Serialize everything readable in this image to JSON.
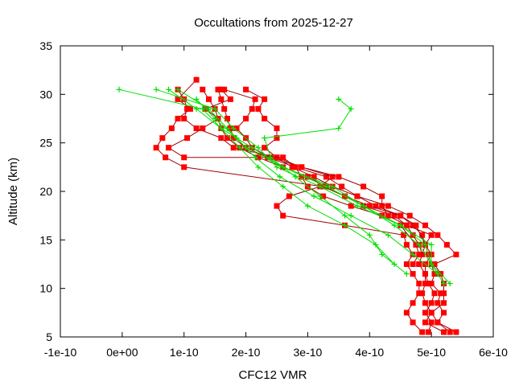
{
  "chart_data": {
    "type": "line",
    "title": "Occultations from 2025-12-27",
    "xlabel": "CFC12 VMR",
    "ylabel": "Altitude (km)",
    "xlim": [
      -1e-10,
      6e-10
    ],
    "ylim": [
      5,
      35
    ],
    "x_ticks": [
      -1e-10,
      0,
      1e-10,
      2e-10,
      3e-10,
      4e-10,
      5e-10,
      6e-10
    ],
    "x_tick_labels": [
      "-1e-10",
      "0e+00",
      "1e-10",
      "2e-10",
      "3e-10",
      "4e-10",
      "5e-10",
      "6e-10"
    ],
    "y_ticks": [
      5,
      10,
      15,
      20,
      25,
      30,
      35
    ],
    "y_tick_labels": [
      "5",
      "10",
      "15",
      "20",
      "25",
      "30",
      "35"
    ],
    "grid": false,
    "colors": {
      "red": "#ff0000",
      "red_line": "#a00000",
      "green": "#00e000",
      "axis": "#000000"
    },
    "series": [
      {
        "name": "red-profile-1",
        "color": "red",
        "marker": "square",
        "points": [
          [
            5.2e-10,
            5.5
          ],
          [
            4.9e-10,
            6.5
          ],
          [
            5e-10,
            7.5
          ],
          [
            4.9e-10,
            8.5
          ],
          [
            4.85e-10,
            9.5
          ],
          [
            4.9e-10,
            10.5
          ],
          [
            4.9e-10,
            11.5
          ],
          [
            4.8e-10,
            12.5
          ],
          [
            4.85e-10,
            13.5
          ],
          [
            4.8e-10,
            14.5
          ],
          [
            4.7e-10,
            15.5
          ],
          [
            4.6e-10,
            16.5
          ],
          [
            4.4e-10,
            17.5
          ],
          [
            3.9e-10,
            18.5
          ],
          [
            3.6e-10,
            19.5
          ],
          [
            3.3e-10,
            20.5
          ],
          [
            3e-10,
            21.5
          ],
          [
            2.6e-10,
            22.5
          ],
          [
            2.2e-10,
            23.5
          ],
          [
            1.9e-10,
            24.5
          ],
          [
            1.7e-10,
            25.5
          ],
          [
            1.6e-10,
            26.5
          ],
          [
            1.55e-10,
            27.5
          ],
          [
            1.5e-10,
            28.5
          ],
          [
            1.4e-10,
            29.5
          ],
          [
            1.3e-10,
            30.5
          ]
        ]
      },
      {
        "name": "red-profile-2",
        "color": "red",
        "marker": "square",
        "points": [
          [
            5.4e-10,
            5.5
          ],
          [
            5.1e-10,
            6.5
          ],
          [
            5.2e-10,
            7.5
          ],
          [
            5.1e-10,
            8.5
          ],
          [
            5.15e-10,
            9.5
          ],
          [
            5e-10,
            10.5
          ],
          [
            5.05e-10,
            11.5
          ],
          [
            5e-10,
            12.5
          ],
          [
            4.95e-10,
            13.5
          ],
          [
            4.9e-10,
            14.5
          ],
          [
            4.85e-10,
            15.5
          ],
          [
            4.7e-10,
            16.5
          ],
          [
            4.5e-10,
            17.5
          ],
          [
            4.1e-10,
            18.5
          ],
          [
            3.8e-10,
            19.5
          ],
          [
            3.55e-10,
            20.5
          ],
          [
            3.3e-10,
            21.5
          ],
          [
            2.8e-10,
            22.5
          ],
          [
            2.35e-10,
            23.5
          ],
          [
            2e-10,
            24.5
          ],
          [
            1.8e-10,
            25.5
          ],
          [
            1.75e-10,
            26.5
          ],
          [
            1.7e-10,
            27.5
          ],
          [
            1.65e-10,
            28.5
          ],
          [
            1.6e-10,
            29.5
          ],
          [
            1.55e-10,
            30.5
          ]
        ]
      },
      {
        "name": "red-profile-3",
        "color": "red",
        "marker": "square",
        "points": [
          [
            4.85e-10,
            5.5
          ],
          [
            4.7e-10,
            6.5
          ],
          [
            4.6e-10,
            7.5
          ],
          [
            4.7e-10,
            8.5
          ],
          [
            4.8e-10,
            9.5
          ],
          [
            4.8e-10,
            10.5
          ],
          [
            4.7e-10,
            11.5
          ],
          [
            4.6e-10,
            12.5
          ],
          [
            4.7e-10,
            13.5
          ],
          [
            4.6e-10,
            14.5
          ],
          [
            4.55e-10,
            15.5
          ],
          [
            3.6e-10,
            16.5
          ],
          [
            2.6e-10,
            17.5
          ],
          [
            2.5e-10,
            18.5
          ],
          [
            2.7e-10,
            19.5
          ],
          [
            3.2e-10,
            20.5
          ],
          [
            3.4e-10,
            21.5
          ],
          [
            2.9e-10,
            22.5
          ],
          [
            2.5e-10,
            23.5
          ],
          [
            2.3e-10,
            24.5
          ],
          [
            2.5e-10,
            25.5
          ],
          [
            2.5e-10,
            26.5
          ],
          [
            2.3e-10,
            27.5
          ],
          [
            2.2e-10,
            28.5
          ],
          [
            2.3e-10,
            29.5
          ],
          [
            2e-10,
            30.5
          ]
        ]
      },
      {
        "name": "red-profile-4",
        "color": "red",
        "marker": "square",
        "points": [
          [
            4.95e-10,
            5.5
          ],
          [
            5e-10,
            6.5
          ],
          [
            4.9e-10,
            7.5
          ],
          [
            5e-10,
            8.5
          ],
          [
            5.05e-10,
            9.5
          ],
          [
            4.95e-10,
            10.5
          ],
          [
            4.9e-10,
            11.5
          ],
          [
            4.9e-10,
            12.5
          ],
          [
            5e-10,
            13.5
          ],
          [
            4.9e-10,
            14.5
          ],
          [
            5e-10,
            15.5
          ],
          [
            4.6e-10,
            16.5
          ],
          [
            4.3e-10,
            17.5
          ],
          [
            4.2e-10,
            18.5
          ],
          [
            4.2e-10,
            19.5
          ],
          [
            3.9e-10,
            20.5
          ],
          [
            3.5e-10,
            21.5
          ],
          [
            2.9e-10,
            22.5
          ],
          [
            2.4e-10,
            23.5
          ],
          [
            2.1e-10,
            24.5
          ],
          [
            2e-10,
            25.5
          ],
          [
            1.85e-10,
            26.5
          ],
          [
            2e-10,
            27.5
          ],
          [
            2.1e-10,
            28.5
          ],
          [
            2.15e-10,
            29.5
          ],
          [
            1.65e-10,
            30.5
          ]
        ]
      },
      {
        "name": "red-profile-5",
        "color": "red",
        "marker": "square",
        "points": [
          [
            5.3e-10,
            5.5
          ],
          [
            5.1e-10,
            6.5
          ],
          [
            5e-10,
            7.5
          ],
          [
            5.2e-10,
            8.5
          ],
          [
            5.2e-10,
            9.5
          ],
          [
            5.2e-10,
            10.5
          ],
          [
            5.15e-10,
            11.5
          ],
          [
            5.05e-10,
            12.5
          ],
          [
            5.4e-10,
            13.5
          ],
          [
            5.25e-10,
            14.5
          ],
          [
            5.1e-10,
            15.5
          ],
          [
            4.9e-10,
            16.5
          ],
          [
            4.65e-10,
            17.5
          ],
          [
            4.3e-10,
            18.5
          ],
          [
            3.8e-10,
            19.5
          ],
          [
            3.4e-10,
            20.5
          ],
          [
            3.1e-10,
            21.5
          ],
          [
            2.75e-10,
            22.5
          ],
          [
            2.5e-10,
            23.5
          ],
          [
            1.8e-10,
            24.5
          ],
          [
            1.6e-10,
            25.5
          ],
          [
            1.2e-10,
            26.5
          ],
          [
            1e-10,
            27.5
          ],
          [
            1.05e-10,
            28.5
          ],
          [
            1e-10,
            29.5
          ],
          [
            9e-11,
            30.5
          ]
        ]
      },
      {
        "name": "red-profile-6",
        "color": "red",
        "marker": "square",
        "points": [
          [
            4.8e-10,
            12.5
          ],
          [
            4.9e-10,
            14.5
          ],
          [
            4.75e-10,
            16.5
          ],
          [
            4.5e-10,
            17.5
          ],
          [
            4e-10,
            18.5
          ],
          [
            3.6e-10,
            19.5
          ],
          [
            3.25e-10,
            20.5
          ],
          [
            1e-10,
            22.5
          ],
          [
            7e-11,
            23.5
          ],
          [
            5.5e-11,
            24.5
          ],
          [
            6.5e-11,
            25.5
          ],
          [
            8e-11,
            26.5
          ],
          [
            9e-11,
            27.5
          ],
          [
            1.1e-10,
            28.5
          ],
          [
            9e-11,
            29.5
          ],
          [
            1.2e-10,
            31.5
          ]
        ]
      },
      {
        "name": "red-profile-7",
        "color": "red",
        "marker": "square",
        "points": [
          [
            4.7e-10,
            12.5
          ],
          [
            4.8e-10,
            13.5
          ],
          [
            4.75e-10,
            14.5
          ],
          [
            4.5e-10,
            16.5
          ],
          [
            4.2e-10,
            17.5
          ],
          [
            3.7e-10,
            18.5
          ],
          [
            3.25e-10,
            19.5
          ],
          [
            3e-10,
            20.5
          ],
          [
            2.9e-10,
            21.5
          ],
          [
            2.8e-10,
            22.5
          ],
          [
            2.6e-10,
            23.5
          ],
          [
            1e-10,
            23.5
          ],
          [
            7.5e-11,
            24.5
          ],
          [
            1.05e-10,
            25.5
          ],
          [
            1.3e-10,
            26.5
          ],
          [
            1.55e-10,
            27.5
          ],
          [
            1.35e-10,
            28.5
          ],
          [
            1.75e-10,
            29.5
          ],
          [
            1.6e-10,
            30.5
          ]
        ]
      },
      {
        "name": "green-profile-1",
        "color": "green",
        "marker": "plus",
        "points": [
          [
            5.2e-10,
            10.5
          ],
          [
            5e-10,
            12.5
          ],
          [
            4.9e-10,
            14.5
          ],
          [
            4.5e-10,
            16.5
          ],
          [
            3.9e-10,
            18.5
          ],
          [
            3.3e-10,
            20.5
          ],
          [
            2.6e-10,
            22.5
          ],
          [
            2.1e-10,
            24.5
          ],
          [
            1.6e-10,
            26.5
          ],
          [
            1.3e-10,
            28.5
          ],
          [
            -5e-12,
            30.5
          ]
        ]
      },
      {
        "name": "green-profile-2",
        "color": "green",
        "marker": "plus",
        "points": [
          [
            5.3e-10,
            10.5
          ],
          [
            5e-10,
            12.5
          ],
          [
            5e-10,
            14.5
          ],
          [
            4.5e-10,
            16.5
          ],
          [
            3.8e-10,
            18.5
          ],
          [
            3.2e-10,
            20.5
          ],
          [
            2.5e-10,
            22.5
          ],
          [
            2.2e-10,
            24.5
          ],
          [
            1.8e-10,
            26.5
          ],
          [
            1.5e-10,
            28.5
          ],
          [
            5.5e-11,
            30.5
          ]
        ]
      },
      {
        "name": "green-profile-3",
        "color": "green",
        "marker": "plus",
        "points": [
          [
            4.6e-10,
            11.5
          ],
          [
            4.2e-10,
            13.5
          ],
          [
            4e-10,
            15.5
          ],
          [
            3.6e-10,
            17.5
          ],
          [
            3.2e-10,
            19.5
          ],
          [
            2.8e-10,
            21.5
          ],
          [
            2.4e-10,
            23.5
          ],
          [
            2.3e-10,
            25.5
          ],
          [
            3.5e-10,
            26.5
          ],
          [
            3.7e-10,
            28.5
          ],
          [
            3.5e-10,
            29.5
          ]
        ]
      },
      {
        "name": "green-profile-4",
        "color": "green",
        "marker": "plus",
        "points": [
          [
            5e-10,
            12.5
          ],
          [
            4.8e-10,
            14.5
          ],
          [
            4.4e-10,
            16.5
          ],
          [
            3.9e-10,
            18.5
          ],
          [
            3.4e-10,
            20.5
          ],
          [
            2.6e-10,
            22.5
          ],
          [
            2e-10,
            24.5
          ],
          [
            1.7e-10,
            26.5
          ],
          [
            1.4e-10,
            28.5
          ],
          [
            9e-11,
            30.5
          ]
        ]
      },
      {
        "name": "green-profile-5",
        "color": "green",
        "marker": "plus",
        "points": [
          [
            4.4e-10,
            12.5
          ],
          [
            4.1e-10,
            14.5
          ],
          [
            3.6e-10,
            16.5
          ],
          [
            3e-10,
            18.5
          ],
          [
            2.6e-10,
            20.5
          ],
          [
            2.2e-10,
            22.5
          ],
          [
            1.9e-10,
            24.5
          ],
          [
            1.6e-10,
            26.5
          ],
          [
            1.2e-10,
            28.5
          ],
          [
            7.5e-11,
            30.5
          ]
        ]
      },
      {
        "name": "green-profile-6",
        "color": "green",
        "marker": "plus",
        "points": [
          [
            5.1e-10,
            11.5
          ],
          [
            4.7e-10,
            13.5
          ],
          [
            4.3e-10,
            15.5
          ],
          [
            3.7e-10,
            17.5
          ],
          [
            3.1e-10,
            19.5
          ],
          [
            2.55e-10,
            21.5
          ],
          [
            2.15e-10,
            23.5
          ],
          [
            1.85e-10,
            25.5
          ],
          [
            1.5e-10,
            27.5
          ],
          [
            1.2e-10,
            29.5
          ]
        ]
      }
    ]
  }
}
